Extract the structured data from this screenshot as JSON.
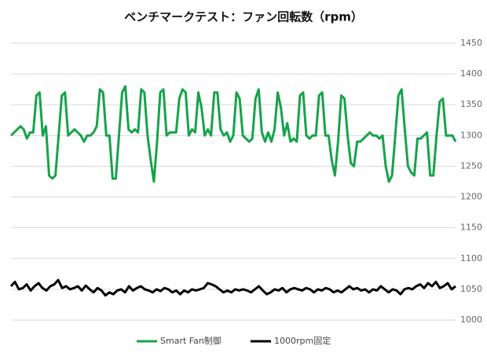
{
  "chart_data": {
    "type": "line",
    "title": "ベンチマークテスト：ファン回転数（rpm）",
    "ylim": [
      1000,
      1450
    ],
    "yticks": [
      1000,
      1050,
      1100,
      1150,
      1200,
      1250,
      1300,
      1350,
      1400,
      1450
    ],
    "grid": true,
    "legend": "bottom",
    "series": [
      {
        "name": "Smart Fan制御",
        "color": "#16a34a",
        "values": [
          1300,
          1305,
          1310,
          1315,
          1310,
          1295,
          1305,
          1305,
          1365,
          1370,
          1300,
          1315,
          1235,
          1230,
          1235,
          1300,
          1365,
          1370,
          1300,
          1305,
          1310,
          1305,
          1300,
          1290,
          1300,
          1300,
          1305,
          1315,
          1375,
          1370,
          1300,
          1300,
          1230,
          1230,
          1300,
          1370,
          1380,
          1310,
          1305,
          1310,
          1305,
          1375,
          1370,
          1300,
          1260,
          1225,
          1290,
          1370,
          1375,
          1300,
          1305,
          1305,
          1305,
          1360,
          1375,
          1370,
          1300,
          1310,
          1305,
          1370,
          1345,
          1300,
          1310,
          1300,
          1370,
          1370,
          1310,
          1300,
          1305,
          1290,
          1300,
          1370,
          1360,
          1300,
          1295,
          1290,
          1295,
          1360,
          1375,
          1305,
          1290,
          1305,
          1290,
          1310,
          1370,
          1345,
          1300,
          1320,
          1290,
          1295,
          1290,
          1365,
          1370,
          1300,
          1295,
          1300,
          1300,
          1365,
          1370,
          1300,
          1300,
          1260,
          1235,
          1290,
          1365,
          1360,
          1300,
          1255,
          1250,
          1290,
          1290,
          1295,
          1300,
          1305,
          1300,
          1300,
          1295,
          1300,
          1250,
          1225,
          1235,
          1300,
          1365,
          1375,
          1310,
          1250,
          1240,
          1235,
          1295,
          1295,
          1300,
          1305,
          1235,
          1235,
          1300,
          1355,
          1360,
          1300,
          1300,
          1300,
          1290
        ]
      },
      {
        "name": "1000rpm固定",
        "color": "#000000",
        "values": [
          1055,
          1062,
          1050,
          1052,
          1058,
          1048,
          1055,
          1060,
          1052,
          1048,
          1055,
          1058,
          1065,
          1052,
          1055,
          1050,
          1052,
          1055,
          1048,
          1056,
          1050,
          1045,
          1052,
          1048,
          1040,
          1045,
          1042,
          1048,
          1050,
          1045,
          1055,
          1048,
          1052,
          1055,
          1050,
          1048,
          1045,
          1050,
          1047,
          1052,
          1050,
          1045,
          1048,
          1042,
          1048,
          1045,
          1050,
          1048,
          1050,
          1052,
          1060,
          1058,
          1055,
          1050,
          1045,
          1048,
          1045,
          1050,
          1048,
          1050,
          1048,
          1045,
          1050,
          1055,
          1048,
          1042,
          1045,
          1050,
          1048,
          1052,
          1045,
          1050,
          1052,
          1050,
          1048,
          1052,
          1050,
          1045,
          1050,
          1048,
          1052,
          1050,
          1045,
          1048,
          1045,
          1050,
          1055,
          1050,
          1052,
          1048,
          1050,
          1045,
          1050,
          1048,
          1055,
          1050,
          1045,
          1050,
          1048,
          1042,
          1050,
          1052,
          1050,
          1055,
          1058,
          1052,
          1060,
          1055,
          1062,
          1052,
          1055,
          1060,
          1050,
          1055
        ]
      }
    ]
  }
}
